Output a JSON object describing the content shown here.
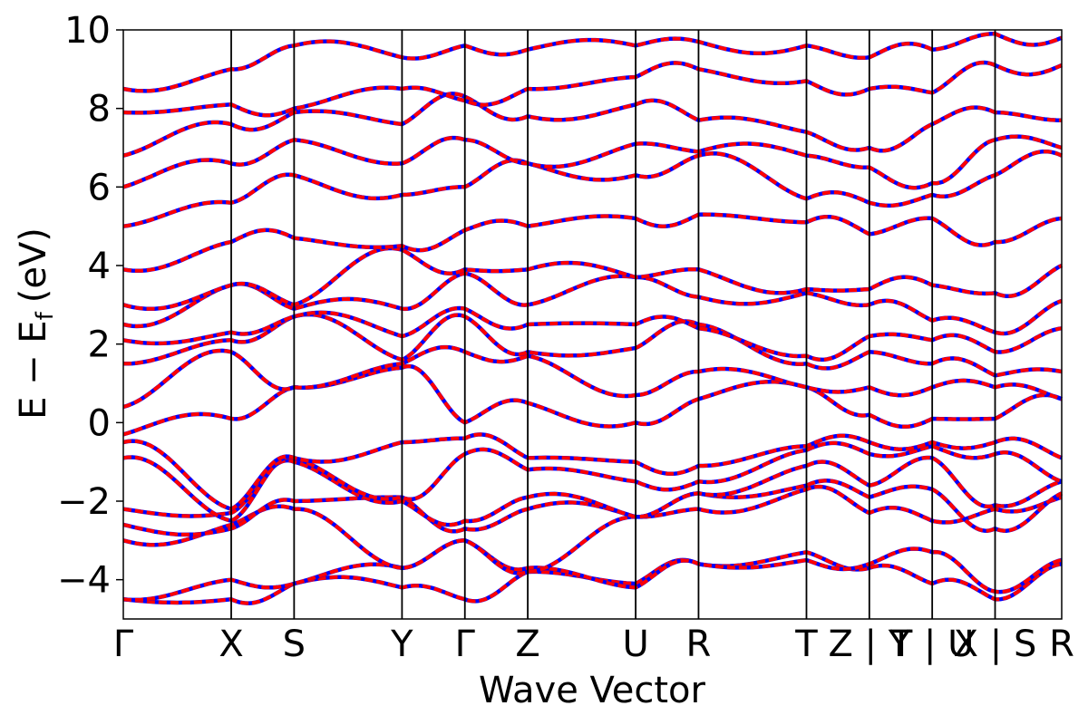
{
  "chart_data": {
    "type": "line",
    "title": "",
    "xlabel": "Wave Vector",
    "ylabel": "E − E",
    "ylabel_subscript": "f",
    "ylabel_unit": "(eV)",
    "ylim": [
      -5,
      10
    ],
    "yticks": [
      {
        "value": -4,
        "label": "−4"
      },
      {
        "value": -2,
        "label": "−2"
      },
      {
        "value": 0,
        "label": "0"
      },
      {
        "value": 2,
        "label": "2"
      },
      {
        "value": 4,
        "label": "4"
      },
      {
        "value": 6,
        "label": "6"
      },
      {
        "value": 8,
        "label": "8"
      },
      {
        "value": 10,
        "label": "10"
      }
    ],
    "kpath": [
      {
        "label": "Γ",
        "x": 0.0
      },
      {
        "label": "X",
        "x": 0.115
      },
      {
        "label": "S",
        "x": 0.182
      },
      {
        "label": "Y",
        "x": 0.297
      },
      {
        "label": "Γ",
        "x": 0.364
      },
      {
        "label": "Z",
        "x": 0.431
      },
      {
        "label": "U",
        "x": 0.546
      },
      {
        "label": "R",
        "x": 0.613
      },
      {
        "label": "T",
        "x": 0.728
      },
      {
        "label": "Z | Y",
        "x": 0.795
      },
      {
        "label": "T | U",
        "x": 0.862
      },
      {
        "label": "X | S",
        "x": 0.929
      },
      {
        "label": "R",
        "x": 1.0
      }
    ],
    "series_style": {
      "band_color": "#ff0000",
      "overlay_color": "#0000ff"
    },
    "grid": false,
    "legend": "none",
    "bands": [
      {
        "knots": [
          -4.5,
          -4.5,
          -4.1,
          -4.2,
          -4.5,
          -3.8,
          -4.1,
          -3.6,
          -3.3,
          -3.7,
          -4.1,
          -4.5,
          -3.6
        ]
      },
      {
        "knots": [
          -4.5,
          -4.0,
          -4.1,
          -3.7,
          -3.0,
          -3.7,
          -4.2,
          -3.6,
          -3.5,
          -3.6,
          -3.3,
          -4.3,
          -3.5
        ]
      },
      {
        "knots": [
          -3.0,
          -2.6,
          -2.2,
          -3.7,
          -3.0,
          -3.8,
          -2.4,
          -2.2,
          -1.7,
          -2.3,
          -2.5,
          -2.2,
          -1.9
        ]
      },
      {
        "knots": [
          -2.6,
          -2.7,
          -2.0,
          -1.9,
          -2.7,
          -2.2,
          -2.4,
          -1.8,
          -1.6,
          -1.9,
          -1.7,
          -2.7,
          -1.8
        ]
      },
      {
        "knots": [
          -2.2,
          -2.3,
          -1.0,
          -2.0,
          -2.5,
          -1.9,
          -2.4,
          -1.8,
          -1.1,
          -1.6,
          -0.9,
          -2.1,
          -1.5
        ]
      },
      {
        "knots": [
          -0.9,
          -2.5,
          -0.9,
          -1.9,
          -0.8,
          -1.2,
          -1.5,
          -1.5,
          -0.7,
          -0.8,
          -0.6,
          -0.8,
          -1.5
        ]
      },
      {
        "knots": [
          -0.5,
          -2.2,
          -0.9,
          -0.5,
          -0.4,
          -0.9,
          -1.0,
          -1.1,
          -0.6,
          -0.5,
          -0.5,
          -0.5,
          -0.9
        ]
      },
      {
        "knots": [
          -0.3,
          0.1,
          0.9,
          1.4,
          0.0,
          0.5,
          0.0,
          0.6,
          0.9,
          0.2,
          0.1,
          0.1,
          0.6
        ]
      },
      {
        "knots": [
          0.4,
          1.8,
          0.9,
          1.5,
          1.8,
          1.7,
          0.7,
          1.3,
          0.9,
          0.9,
          0.9,
          0.9,
          0.6
        ]
      },
      {
        "knots": [
          1.5,
          2.1,
          2.7,
          1.6,
          2.7,
          1.8,
          1.9,
          2.5,
          1.5,
          1.8,
          1.5,
          1.2,
          1.3
        ]
      },
      {
        "knots": [
          2.1,
          2.3,
          2.7,
          2.2,
          2.9,
          2.5,
          2.5,
          2.4,
          1.7,
          2.2,
          2.1,
          1.8,
          2.4
        ]
      },
      {
        "knots": [
          2.5,
          3.5,
          2.9,
          2.9,
          3.8,
          3.0,
          3.7,
          3.2,
          3.3,
          3.0,
          2.6,
          2.3,
          3.1
        ]
      },
      {
        "knots": [
          3.0,
          3.5,
          3.0,
          4.4,
          3.9,
          3.9,
          3.7,
          3.9,
          3.4,
          3.4,
          3.5,
          3.3,
          4.0
        ]
      },
      {
        "knots": [
          3.9,
          4.6,
          4.7,
          4.5,
          4.9,
          5.0,
          5.2,
          5.3,
          5.1,
          4.8,
          5.2,
          4.6,
          5.2
        ]
      },
      {
        "knots": [
          5.0,
          5.6,
          6.3,
          5.8,
          6.0,
          6.6,
          6.3,
          6.8,
          5.7,
          5.6,
          5.8,
          6.3,
          6.8
        ]
      },
      {
        "knots": [
          6.0,
          6.6,
          7.2,
          6.6,
          7.2,
          6.6,
          7.1,
          6.9,
          6.8,
          6.5,
          6.1,
          7.2,
          7.0
        ]
      },
      {
        "knots": [
          6.8,
          7.6,
          7.9,
          7.6,
          8.3,
          7.8,
          8.1,
          7.7,
          7.4,
          7.0,
          7.6,
          7.9,
          7.7
        ]
      },
      {
        "knots": [
          7.9,
          8.1,
          8.0,
          8.5,
          8.2,
          8.5,
          8.8,
          9.0,
          8.7,
          8.5,
          8.4,
          9.1,
          9.1
        ]
      },
      {
        "knots": [
          8.5,
          9.0,
          9.6,
          9.3,
          9.6,
          9.5,
          9.6,
          9.7,
          9.6,
          9.3,
          9.5,
          9.9,
          9.8
        ]
      }
    ]
  }
}
